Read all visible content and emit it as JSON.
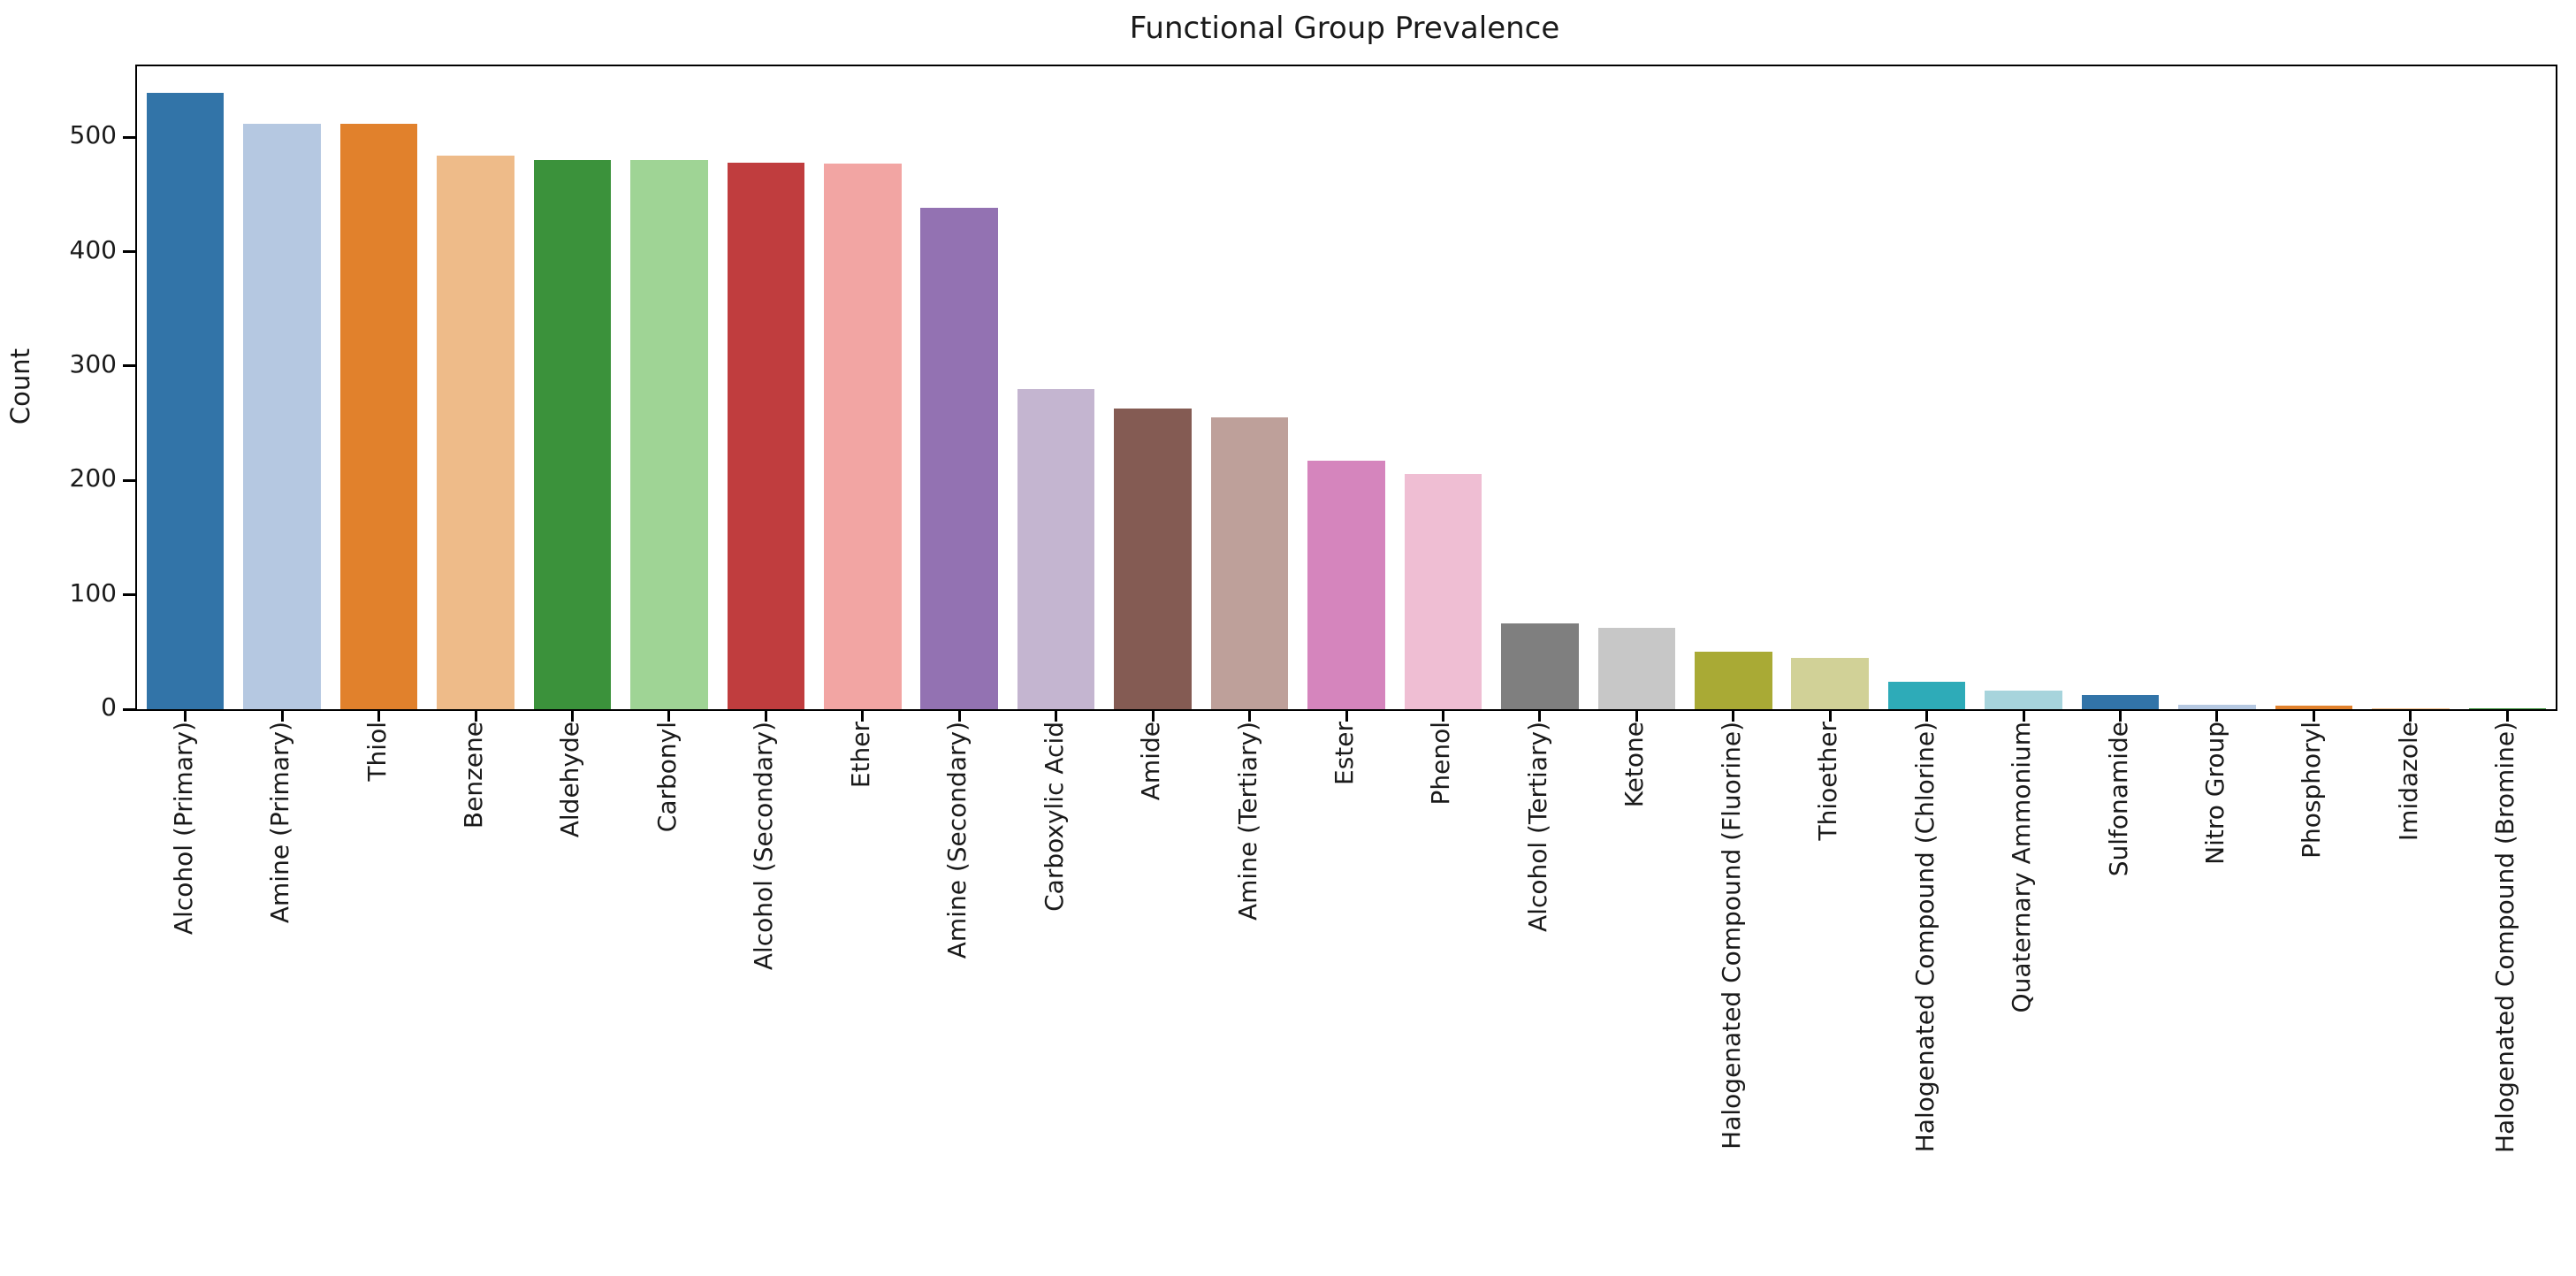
{
  "chart_data": {
    "type": "bar",
    "title": "Functional Group Prevalence",
    "xlabel": "",
    "ylabel": "Count",
    "ylim": [
      0,
      562
    ],
    "yticks": [
      0,
      100,
      200,
      300,
      400,
      500
    ],
    "grid": false,
    "legend": null,
    "x_tick_rotation_deg": 90,
    "background_color": "#ffffff",
    "axis_color": "#000000",
    "text_color": "#1a1a1a",
    "categories": [
      "Alcohol (Primary)",
      "Amine (Primary)",
      "Thiol",
      "Benzene",
      "Aldehyde",
      "Carbonyl",
      "Alcohol (Secondary)",
      "Ether",
      "Amine (Secondary)",
      "Carboxylic Acid",
      "Amide",
      "Amine (Tertiary)",
      "Ester",
      "Phenol",
      "Alcohol (Tertiary)",
      "Ketone",
      "Halogenated Compound (Fluorine)",
      "Thioether",
      "Halogenated Compound (Chlorine)",
      "Quaternary Ammonium",
      "Sulfonamide",
      "Nitro Group",
      "Phosphoryl",
      "Imidazole",
      "Halogenated Compound (Bromine)"
    ],
    "values": [
      539,
      512,
      512,
      484,
      480,
      480,
      478,
      477,
      438,
      280,
      263,
      255,
      217,
      206,
      75,
      71,
      50,
      45,
      24,
      16,
      12,
      4,
      3,
      1,
      1
    ],
    "bar_colors": [
      "#3274a8",
      "#b5c8e1",
      "#e1812c",
      "#eebb89",
      "#3b923b",
      "#9fd495",
      "#c03d3e",
      "#f2a5a3",
      "#9372b2",
      "#c4b5d0",
      "#845b53",
      "#bea09a",
      "#d585bd",
      "#efbed3",
      "#7f7f7f",
      "#c7c7c7",
      "#a9aa35",
      "#d1d197",
      "#2eabb8",
      "#a7d4dc",
      "#3274a8",
      "#b5c8e1",
      "#e1812c",
      "#eebb89",
      "#3b923b"
    ]
  }
}
